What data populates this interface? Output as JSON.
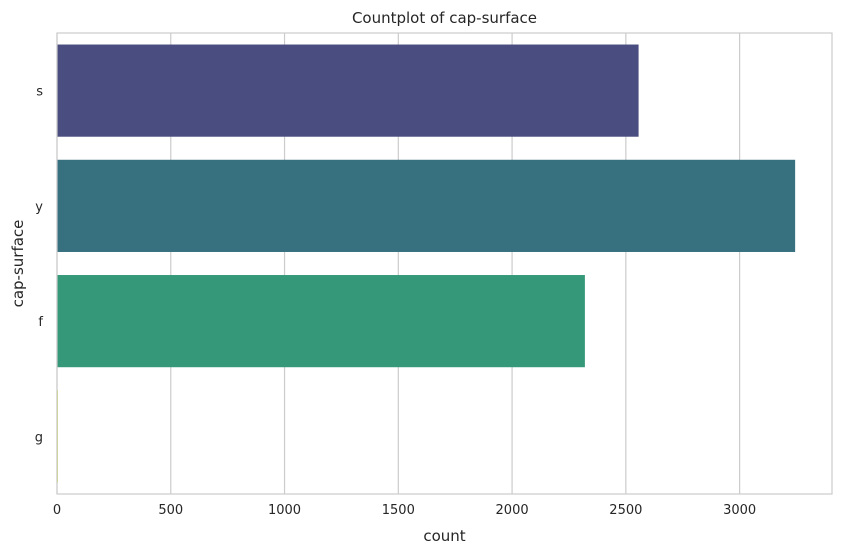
{
  "chart_data": {
    "type": "bar",
    "orientation": "horizontal",
    "title": "Countplot of cap-surface",
    "xlabel": "count",
    "ylabel": "cap-surface",
    "categories": [
      "s",
      "y",
      "f",
      "g"
    ],
    "values": [
      2556,
      3244,
      2320,
      4
    ],
    "colors": [
      "#4a4d7f",
      "#37707f",
      "#359879",
      "#c8dd3a"
    ],
    "xlim": [
      0,
      3406
    ],
    "xticks": [
      0,
      500,
      1000,
      1500,
      2000,
      2500,
      3000
    ],
    "xtick_labels": [
      "0",
      "500",
      "1000",
      "1500",
      "2000",
      "2500",
      "3000"
    ],
    "grid": true,
    "legend": "none"
  }
}
